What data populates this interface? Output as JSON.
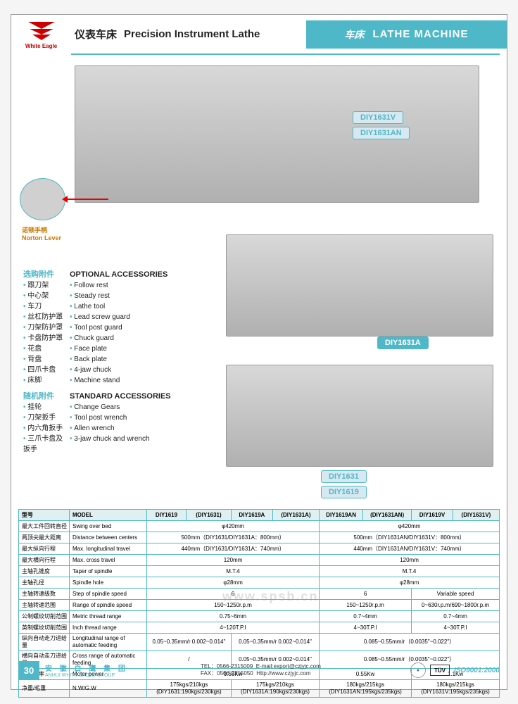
{
  "header": {
    "logo_text": "White Eagle",
    "title_cn": "仪表车床",
    "title_en": "Precision Instrument Lathe",
    "category_cn": "车床",
    "category_en": "LATHE MACHINE"
  },
  "norton": {
    "label_cn": "诺顿手柄",
    "label_en": "Norton Lever"
  },
  "badges": {
    "b1": "DIY1631V",
    "b2": "DIY1631AN",
    "b3": "DIY1631A",
    "b4": "DIY1631",
    "b5": "DIY1619"
  },
  "optional": {
    "head_cn": "选购附件",
    "head_en": "OPTIONAL ACCESSORIES",
    "items": [
      {
        "cn": "跟刀架",
        "en": "Follow rest"
      },
      {
        "cn": "中心架",
        "en": "Steady rest"
      },
      {
        "cn": "车刀",
        "en": "Lathe tool"
      },
      {
        "cn": "丝杠防护罩",
        "en": "Lead screw guard"
      },
      {
        "cn": "刀架防护罩",
        "en": "Tool post guard"
      },
      {
        "cn": "卡盘防护罩",
        "en": "Chuck guard"
      },
      {
        "cn": "花盘",
        "en": "Face plate"
      },
      {
        "cn": "背盘",
        "en": "Back plate"
      },
      {
        "cn": "四爪卡盘",
        "en": "4-jaw chuck"
      },
      {
        "cn": "床脚",
        "en": "Machine stand"
      }
    ]
  },
  "standard": {
    "head_cn": "随机附件",
    "head_en": "STANDARD ACCESSORIES",
    "items": [
      {
        "cn": "挂轮",
        "en": "Change Gears"
      },
      {
        "cn": "刀架扳手",
        "en": "Tool post wrench"
      },
      {
        "cn": "内六角扳手",
        "en": "Allen wrench"
      },
      {
        "cn": "三爪卡盘及扳手",
        "en": "3-jaw chuck and wrench"
      }
    ]
  },
  "table": {
    "head": {
      "cn": "型号",
      "model": "MODEL",
      "c1": "DIY1619",
      "c2": "DIY1631",
      "c3": "DIY1619A",
      "c4": "DIY1631A",
      "c5": "DIY1619AN",
      "c6": "DIY1631AN",
      "c7": "DIY1619V",
      "c8": "DIY1631V"
    },
    "rows": [
      {
        "cn": "最大工件回转直径",
        "en": "Swing over bed",
        "v1": "φ420mm",
        "v2": "φ420mm"
      },
      {
        "cn": "两顶尖最大距离",
        "en": "Distance between centers",
        "v1": "500mm（DIY1631/DIY1631A：800mm）",
        "v2": "500mm（DIY1631AN/DIY1631V：800mm）"
      },
      {
        "cn": "最大纵向行程",
        "en": "Max. longitudinal travel",
        "v1": "440mm（DIY1631/DIY1631A：740mm）",
        "v2": "440mm（DIY1631AN/DIY1631V：740mm）"
      },
      {
        "cn": "最大横向行程",
        "en": "Max. cross travel",
        "v1": "120mm",
        "v2": "120mm"
      },
      {
        "cn": "主轴孔锥度",
        "en": "Taper of spindle",
        "v1": "M.T.4",
        "v2": "M.T.4"
      },
      {
        "cn": "主轴孔径",
        "en": "Spindle hole",
        "v1": "φ28mm",
        "v2": "φ28mm"
      }
    ],
    "r_step": {
      "cn": "主轴转速级数",
      "en": "Step of spindle speed",
      "v1": "6",
      "v2": "6",
      "v3": "Variable speed"
    },
    "r_range": {
      "cn": "主轴转速范围",
      "en": "Range of spindle speed",
      "v1": "150~1250r.p.m",
      "v2": "150~1250r.p.m",
      "v3": "0~630r.p.m/690~1800r.p.m"
    },
    "r_metric": {
      "cn": "公制螺纹切削范围",
      "en": "Metric thread range",
      "v1": "0.75~6mm",
      "v2": "0.7~4mm",
      "v3": "0.7~4mm"
    },
    "r_inch": {
      "cn": "英制螺纹切削范围",
      "en": "Inch thread range",
      "v1": "4~120T.P.I",
      "v2": "4~30T.P.I",
      "v3": "4~30T.P.I"
    },
    "r_long": {
      "cn": "纵向自动走刀进给量",
      "en": "Longitudinal range of automatic feeding",
      "v1": "0.05~0.35mm/r 0.002~0.014\"",
      "v2": "0.05~0.35mm/r 0.002~0.014\"",
      "v3": "0.085~0.55mm/r（0.0035\"~0.022\"）"
    },
    "r_cross": {
      "cn": "横向自动走刀进给量",
      "en": "Cross range of automatic feeding",
      "v1": "/",
      "v2": "0.05~0.35mm/r 0.002~0.014\"",
      "v3": "0.085~0.55mm/r（0.0035\"~0.022\"）"
    },
    "r_motor": {
      "cn": "电机功率",
      "en": "Motor power",
      "v1": "0.55Kw",
      "v2": "0.55Kw",
      "v3": "1.1Kw"
    },
    "r_weight": {
      "cn": "净重/毛重",
      "en": "N.W/G.W",
      "v1": "175kgs/210kgs (DIY1631:190kgs/230kgs)",
      "v2": "175kgs/210kgs (DIY1631A:190kgs/230kgs)",
      "v3": "180kgs/215kgs (DIY1631AN:195kgs/235kgs)",
      "v4": "180kgs/215kgs (DIY1631V:195kgs/235kgs)"
    }
  },
  "footer": {
    "page": "30",
    "company_cn": "安 徽 白 鹰 集 团",
    "company_en": "ANHUI WHITE EAGLE GROUP",
    "tel": "TEL：0566-2315009",
    "fax": "FAX：0566-2315050",
    "email": "E-mail:export@czjyjc.com",
    "web": "Http://www.czjyjc.com",
    "tuv": "TÜV",
    "iso": "ISO9001:2000"
  },
  "watermark": "www.spsb.cn",
  "colors": {
    "teal": "#4fb8c8",
    "red": "#c00",
    "orange": "#cc7700"
  }
}
